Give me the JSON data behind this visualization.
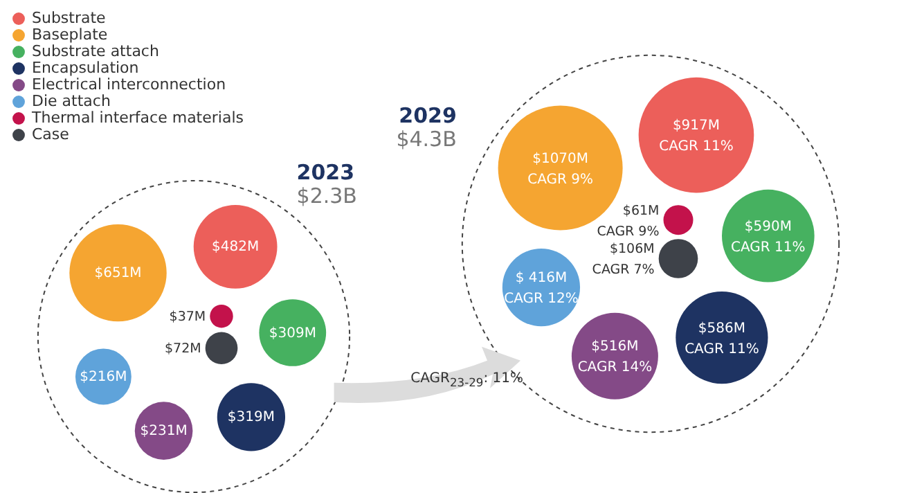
{
  "chart_data": {
    "type": "other",
    "legend": "top left",
    "categories": [
      "2023",
      "2029"
    ],
    "totals": [
      "$2.3B",
      "$4.3B"
    ],
    "series": [
      {
        "name": "Substrate",
        "color": "#ec5f5a",
        "values": [
          482,
          917
        ],
        "value_labels": [
          "$482M",
          "$917M"
        ]
      },
      {
        "name": "Baseplate",
        "color": "#f5a531",
        "values": [
          651,
          1070
        ],
        "value_labels": [
          "$651M",
          "$1070M"
        ]
      },
      {
        "name": "Substrate attach",
        "color": "#46b160",
        "values": [
          309,
          590
        ],
        "value_labels": [
          "$309M",
          "$590M"
        ]
      },
      {
        "name": "Encapsulation",
        "color": "#1e3362",
        "values": [
          319,
          586
        ],
        "value_labels": [
          "$319M",
          "$586M"
        ]
      },
      {
        "name": "Electrical interconnection",
        "color": "#844a87",
        "values": [
          231,
          516
        ],
        "value_labels": [
          "$231M",
          "$516M"
        ]
      },
      {
        "name": "Die attach",
        "color": "#5fa3da",
        "values": [
          216,
          416
        ],
        "value_labels": [
          "$216M",
          "$ 416M"
        ]
      },
      {
        "name": "Thermal interface materials",
        "color": "#c3124b",
        "values": [
          37,
          61
        ],
        "value_labels": [
          "$37M",
          "$61M"
        ]
      },
      {
        "name": "Case",
        "color": "#3e4249",
        "values": [
          72,
          106
        ],
        "value_labels": [
          "$72M",
          "$106M"
        ]
      }
    ],
    "annotations": [
      "CAGR$_{23-29}$: 11%",
      "CAGR 11%",
      "CAGR 9%",
      "CAGR 11%",
      "CAGR 11%",
      "CAGR 14%",
      "CAGR 12%",
      "CAGR 9%",
      "CAGR 7%"
    ]
  }
}
